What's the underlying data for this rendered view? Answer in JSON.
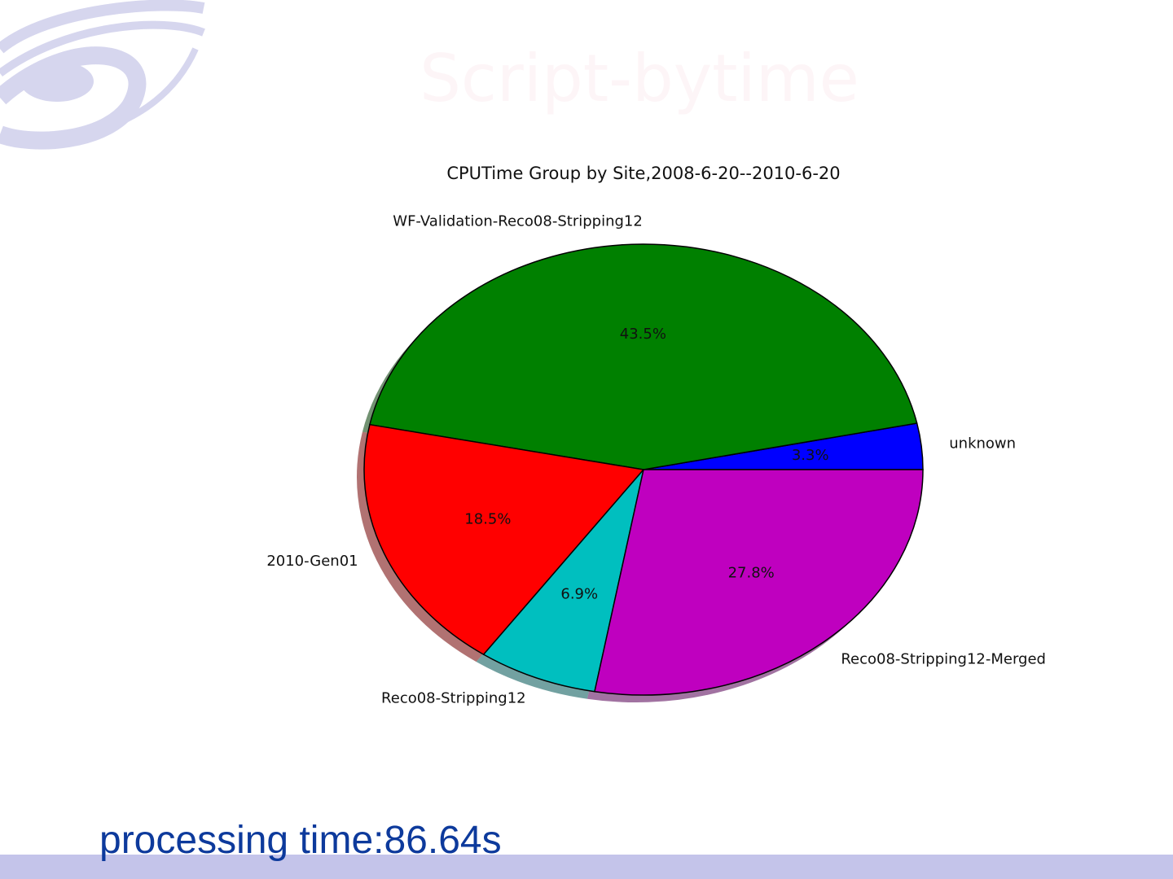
{
  "slide_title": "Script-bytime",
  "chart_data": {
    "type": "pie",
    "title": "CPUTime Group by Site,2008-6-20--2010-6-20",
    "categories": [
      "unknown",
      "WF-Validation-Reco08-Stripping12",
      "2010-Gen01",
      "Reco08-Stripping12",
      "Reco08-Stripping12-Merged"
    ],
    "values": [
      3.3,
      43.5,
      18.5,
      6.9,
      27.8
    ],
    "value_labels": [
      "3.3%",
      "43.5%",
      "18.5%",
      "6.9%",
      "27.8%"
    ],
    "colors": [
      "#0000ff",
      "#008000",
      "#ff0000",
      "#00bfbf",
      "#bf00bf"
    ],
    "shadow": true
  },
  "footer": "processing time:86.64s"
}
